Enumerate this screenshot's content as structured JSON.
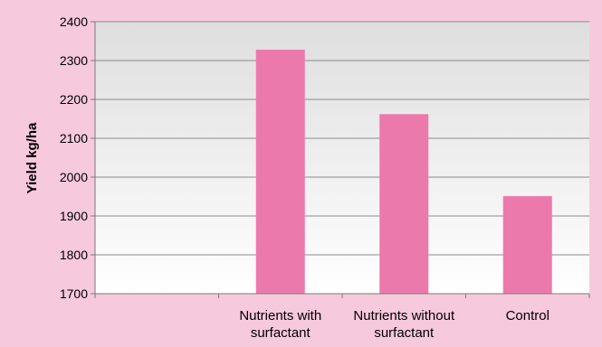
{
  "chart_data": {
    "type": "bar",
    "title": "",
    "xlabel": "",
    "ylabel": "Yield kg/ha",
    "ylim": [
      1700,
      2400
    ],
    "yticks": [
      1700,
      1800,
      1900,
      2000,
      2100,
      2200,
      2300,
      2400
    ],
    "categories": [
      "",
      "Nutrients with\nsurfactant",
      "Nutrients without\nsurfactant",
      "Control"
    ],
    "values": [
      null,
      2328,
      2162,
      1951
    ],
    "grid": true,
    "legend": "none",
    "colors": {
      "bar": "#ec79ab",
      "background": "#f7c9dc",
      "plot_top": "#dedede",
      "plot_bottom": "#ffffff",
      "gridline": "#8c8c8c"
    }
  }
}
